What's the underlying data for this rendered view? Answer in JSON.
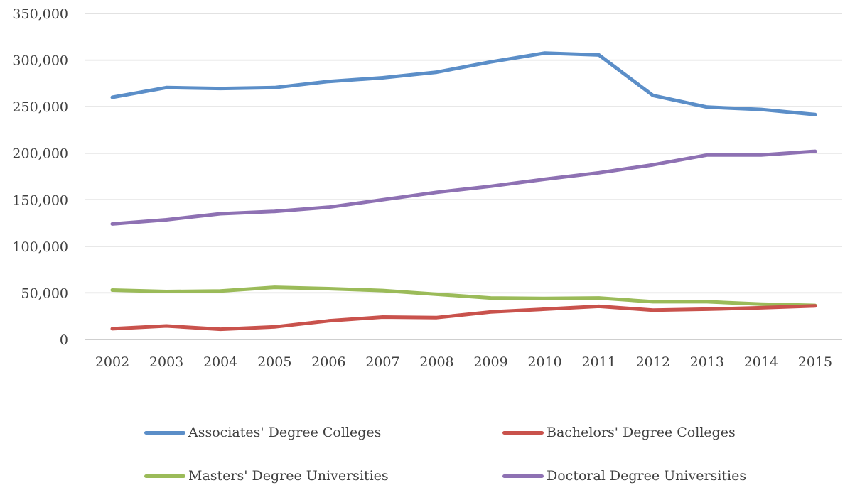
{
  "chart_data": {
    "type": "line",
    "title": "",
    "xlabel": "",
    "ylabel": "",
    "x": [
      "2002",
      "2003",
      "2004",
      "2005",
      "2006",
      "2007",
      "2008",
      "2009",
      "2010",
      "2011",
      "2012",
      "2013",
      "2014",
      "2015"
    ],
    "ylim": [
      0,
      350000
    ],
    "yticks": [
      0,
      50000,
      100000,
      150000,
      200000,
      250000,
      300000,
      350000
    ],
    "ytick_labels": [
      "0",
      "50,000",
      "100,000",
      "150,000",
      "200,000",
      "250,000",
      "300,000",
      "350,000"
    ],
    "grid": "horizontal",
    "legend_position": "bottom",
    "series": [
      {
        "name": "Associates' Degree Colleges",
        "color": "#5b8ec8",
        "values": [
          260000,
          270500,
          269500,
          270500,
          277000,
          281000,
          287000,
          298000,
          307500,
          305500,
          262000,
          249500,
          247000,
          241500
        ]
      },
      {
        "name": "Bachelors' Degree Colleges",
        "color": "#c9524c",
        "values": [
          11500,
          14500,
          11000,
          13500,
          20000,
          24000,
          23500,
          29500,
          32500,
          35500,
          31500,
          32500,
          34000,
          36000
        ]
      },
      {
        "name": "Masters' Degree Universities",
        "color": "#9bbb59",
        "values": [
          53000,
          51500,
          52000,
          56000,
          54500,
          52500,
          48500,
          44500,
          44000,
          44500,
          40500,
          40500,
          38000,
          36500
        ]
      },
      {
        "name": "Doctoral Degree Universities",
        "color": "#8e71b3",
        "values": [
          124000,
          128500,
          135000,
          137500,
          142000,
          150000,
          158000,
          164500,
          172000,
          179000,
          187500,
          198000,
          198000,
          202000
        ]
      }
    ]
  }
}
